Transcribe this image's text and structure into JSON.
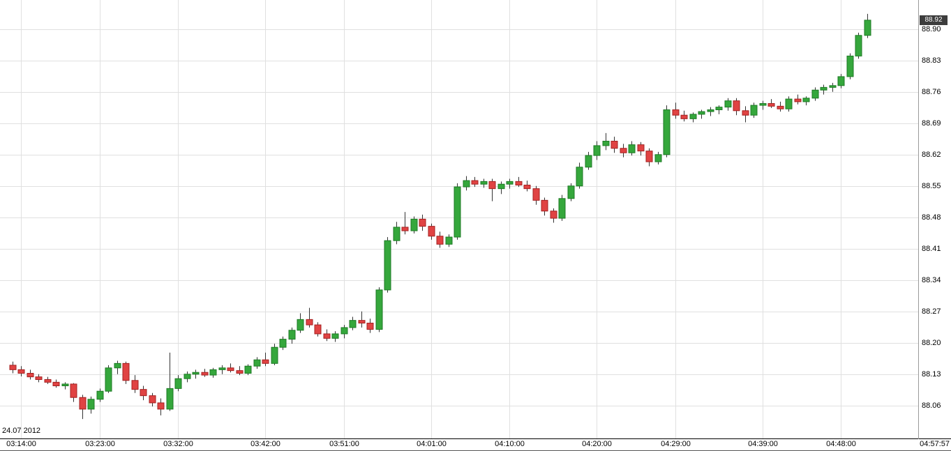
{
  "y_axis": {
    "ticks": [
      "88.90",
      "88.83",
      "88.76",
      "88.69",
      "88.62",
      "88.55",
      "88.48",
      "88.41",
      "88.34",
      "88.27",
      "88.20",
      "88.13",
      "88.06"
    ],
    "current_price": "88.92"
  },
  "x_axis": {
    "ticks": [
      "03:14:00",
      "03:23:00",
      "03:32:00",
      "03:42:00",
      "03:51:00",
      "04:01:00",
      "04:10:00",
      "04:20:00",
      "04:29:00",
      "04:39:00",
      "04:48:00"
    ],
    "current_time": "04:57:57",
    "date_label": "24.07 2012"
  },
  "chart_data": {
    "type": "candlestick",
    "title": "",
    "date": "24.07 2012",
    "current_price": 88.92,
    "ylim": [
      87.985,
      88.965
    ],
    "grid": true,
    "colors": {
      "up_fill": "#35a73c",
      "up_stroke": "#1d7a24",
      "down_fill": "#e04343",
      "down_stroke": "#a32020",
      "wick": "#333333",
      "grid": "#e0e0e0",
      "axis_line": "#000000",
      "badge_bg": "#3d3d3d"
    },
    "candles": [
      {
        "t": "03:13",
        "o": 88.15,
        "h": 88.158,
        "l": 88.132,
        "c": 88.14
      },
      {
        "t": "03:14",
        "o": 88.14,
        "h": 88.148,
        "l": 88.125,
        "c": 88.132
      },
      {
        "t": "03:15",
        "o": 88.132,
        "h": 88.14,
        "l": 88.118,
        "c": 88.124
      },
      {
        "t": "03:16",
        "o": 88.124,
        "h": 88.13,
        "l": 88.112,
        "c": 88.118
      },
      {
        "t": "03:17",
        "o": 88.118,
        "h": 88.124,
        "l": 88.108,
        "c": 88.112
      },
      {
        "t": "03:18",
        "o": 88.112,
        "h": 88.118,
        "l": 88.1,
        "c": 88.104
      },
      {
        "t": "03:19",
        "o": 88.104,
        "h": 88.112,
        "l": 88.096,
        "c": 88.108
      },
      {
        "t": "03:20",
        "o": 88.108,
        "h": 88.11,
        "l": 88.068,
        "c": 88.078
      },
      {
        "t": "03:21",
        "o": 88.078,
        "h": 88.084,
        "l": 88.03,
        "c": 88.052
      },
      {
        "t": "03:22",
        "o": 88.052,
        "h": 88.08,
        "l": 88.042,
        "c": 88.074
      },
      {
        "t": "03:23",
        "o": 88.074,
        "h": 88.098,
        "l": 88.068,
        "c": 88.092
      },
      {
        "t": "03:24",
        "o": 88.092,
        "h": 88.15,
        "l": 88.088,
        "c": 88.144
      },
      {
        "t": "03:25",
        "o": 88.144,
        "h": 88.16,
        "l": 88.13,
        "c": 88.154
      },
      {
        "t": "03:26",
        "o": 88.154,
        "h": 88.158,
        "l": 88.108,
        "c": 88.116
      },
      {
        "t": "03:27",
        "o": 88.116,
        "h": 88.128,
        "l": 88.088,
        "c": 88.096
      },
      {
        "t": "03:28",
        "o": 88.096,
        "h": 88.104,
        "l": 88.072,
        "c": 88.082
      },
      {
        "t": "03:29",
        "o": 88.082,
        "h": 88.088,
        "l": 88.058,
        "c": 88.066
      },
      {
        "t": "03:30",
        "o": 88.066,
        "h": 88.076,
        "l": 88.038,
        "c": 88.052
      },
      {
        "t": "03:31",
        "o": 88.052,
        "h": 88.178,
        "l": 88.048,
        "c": 88.098
      },
      {
        "t": "03:32",
        "o": 88.098,
        "h": 88.128,
        "l": 88.092,
        "c": 88.12
      },
      {
        "t": "03:33",
        "o": 88.12,
        "h": 88.136,
        "l": 88.112,
        "c": 88.13
      },
      {
        "t": "03:34",
        "o": 88.13,
        "h": 88.14,
        "l": 88.12,
        "c": 88.134
      },
      {
        "t": "03:35",
        "o": 88.134,
        "h": 88.142,
        "l": 88.124,
        "c": 88.128
      },
      {
        "t": "03:36",
        "o": 88.128,
        "h": 88.144,
        "l": 88.122,
        "c": 88.14
      },
      {
        "t": "03:37",
        "o": 88.14,
        "h": 88.15,
        "l": 88.13,
        "c": 88.144
      },
      {
        "t": "03:38",
        "o": 88.144,
        "h": 88.154,
        "l": 88.134,
        "c": 88.138
      },
      {
        "t": "03:39",
        "o": 88.138,
        "h": 88.148,
        "l": 88.128,
        "c": 88.132
      },
      {
        "t": "03:40",
        "o": 88.132,
        "h": 88.152,
        "l": 88.128,
        "c": 88.148
      },
      {
        "t": "03:41",
        "o": 88.148,
        "h": 88.168,
        "l": 88.142,
        "c": 88.162
      },
      {
        "t": "03:42",
        "o": 88.162,
        "h": 88.178,
        "l": 88.148,
        "c": 88.154
      },
      {
        "t": "03:43",
        "o": 88.154,
        "h": 88.198,
        "l": 88.15,
        "c": 88.19
      },
      {
        "t": "03:44",
        "o": 88.19,
        "h": 88.214,
        "l": 88.184,
        "c": 88.208
      },
      {
        "t": "03:45",
        "o": 88.208,
        "h": 88.234,
        "l": 88.198,
        "c": 88.228
      },
      {
        "t": "03:46",
        "o": 88.228,
        "h": 88.266,
        "l": 88.222,
        "c": 88.252
      },
      {
        "t": "03:47",
        "o": 88.252,
        "h": 88.278,
        "l": 88.234,
        "c": 88.24
      },
      {
        "t": "03:48",
        "o": 88.24,
        "h": 88.246,
        "l": 88.214,
        "c": 88.22
      },
      {
        "t": "03:49",
        "o": 88.22,
        "h": 88.23,
        "l": 88.204,
        "c": 88.21
      },
      {
        "t": "03:50",
        "o": 88.21,
        "h": 88.226,
        "l": 88.202,
        "c": 88.22
      },
      {
        "t": "03:51",
        "o": 88.22,
        "h": 88.24,
        "l": 88.21,
        "c": 88.234
      },
      {
        "t": "03:52",
        "o": 88.234,
        "h": 88.258,
        "l": 88.228,
        "c": 88.25
      },
      {
        "t": "03:53",
        "o": 88.25,
        "h": 88.27,
        "l": 88.234,
        "c": 88.244
      },
      {
        "t": "03:54",
        "o": 88.244,
        "h": 88.254,
        "l": 88.222,
        "c": 88.23
      },
      {
        "t": "03:55",
        "o": 88.23,
        "h": 88.324,
        "l": 88.224,
        "c": 88.318
      },
      {
        "t": "03:56",
        "o": 88.318,
        "h": 88.436,
        "l": 88.312,
        "c": 88.428
      },
      {
        "t": "03:57",
        "o": 88.428,
        "h": 88.47,
        "l": 88.42,
        "c": 88.458
      },
      {
        "t": "03:58",
        "o": 88.458,
        "h": 88.492,
        "l": 88.442,
        "c": 88.45
      },
      {
        "t": "03:59",
        "o": 88.45,
        "h": 88.482,
        "l": 88.444,
        "c": 88.476
      },
      {
        "t": "04:00",
        "o": 88.476,
        "h": 88.486,
        "l": 88.45,
        "c": 88.46
      },
      {
        "t": "04:01",
        "o": 88.46,
        "h": 88.466,
        "l": 88.43,
        "c": 88.438
      },
      {
        "t": "04:02",
        "o": 88.438,
        "h": 88.448,
        "l": 88.412,
        "c": 88.42
      },
      {
        "t": "04:03",
        "o": 88.42,
        "h": 88.442,
        "l": 88.414,
        "c": 88.436
      },
      {
        "t": "04:04",
        "o": 88.436,
        "h": 88.556,
        "l": 88.43,
        "c": 88.548
      },
      {
        "t": "04:05",
        "o": 88.548,
        "h": 88.572,
        "l": 88.54,
        "c": 88.562
      },
      {
        "t": "04:06",
        "o": 88.562,
        "h": 88.57,
        "l": 88.548,
        "c": 88.554
      },
      {
        "t": "04:07",
        "o": 88.554,
        "h": 88.566,
        "l": 88.546,
        "c": 88.56
      },
      {
        "t": "04:08",
        "o": 88.56,
        "h": 88.566,
        "l": 88.516,
        "c": 88.544
      },
      {
        "t": "04:09",
        "o": 88.544,
        "h": 88.56,
        "l": 88.532,
        "c": 88.554
      },
      {
        "t": "04:10",
        "o": 88.554,
        "h": 88.566,
        "l": 88.544,
        "c": 88.56
      },
      {
        "t": "04:11",
        "o": 88.56,
        "h": 88.57,
        "l": 88.548,
        "c": 88.552
      },
      {
        "t": "04:12",
        "o": 88.552,
        "h": 88.562,
        "l": 88.538,
        "c": 88.544
      },
      {
        "t": "04:13",
        "o": 88.544,
        "h": 88.55,
        "l": 88.508,
        "c": 88.518
      },
      {
        "t": "04:14",
        "o": 88.518,
        "h": 88.524,
        "l": 88.484,
        "c": 88.494
      },
      {
        "t": "04:15",
        "o": 88.494,
        "h": 88.5,
        "l": 88.468,
        "c": 88.478
      },
      {
        "t": "04:16",
        "o": 88.478,
        "h": 88.53,
        "l": 88.472,
        "c": 88.522
      },
      {
        "t": "04:17",
        "o": 88.522,
        "h": 88.556,
        "l": 88.516,
        "c": 88.55
      },
      {
        "t": "04:18",
        "o": 88.55,
        "h": 88.602,
        "l": 88.544,
        "c": 88.592
      },
      {
        "t": "04:19",
        "o": 88.592,
        "h": 88.626,
        "l": 88.586,
        "c": 88.618
      },
      {
        "t": "04:20",
        "o": 88.618,
        "h": 88.65,
        "l": 88.608,
        "c": 88.64
      },
      {
        "t": "04:21",
        "o": 88.64,
        "h": 88.668,
        "l": 88.63,
        "c": 88.65
      },
      {
        "t": "04:22",
        "o": 88.65,
        "h": 88.66,
        "l": 88.624,
        "c": 88.634
      },
      {
        "t": "04:23",
        "o": 88.634,
        "h": 88.644,
        "l": 88.614,
        "c": 88.624
      },
      {
        "t": "04:24",
        "o": 88.624,
        "h": 88.65,
        "l": 88.618,
        "c": 88.642
      },
      {
        "t": "04:25",
        "o": 88.642,
        "h": 88.648,
        "l": 88.618,
        "c": 88.628
      },
      {
        "t": "04:26",
        "o": 88.628,
        "h": 88.634,
        "l": 88.594,
        "c": 88.604
      },
      {
        "t": "04:27",
        "o": 88.604,
        "h": 88.626,
        "l": 88.598,
        "c": 88.62
      },
      {
        "t": "04:28",
        "o": 88.62,
        "h": 88.73,
        "l": 88.614,
        "c": 88.72
      },
      {
        "t": "04:29",
        "o": 88.72,
        "h": 88.736,
        "l": 88.7,
        "c": 88.708
      },
      {
        "t": "04:30",
        "o": 88.708,
        "h": 88.718,
        "l": 88.694,
        "c": 88.7
      },
      {
        "t": "04:31",
        "o": 88.7,
        "h": 88.714,
        "l": 88.692,
        "c": 88.71
      },
      {
        "t": "04:32",
        "o": 88.71,
        "h": 88.72,
        "l": 88.7,
        "c": 88.716
      },
      {
        "t": "04:33",
        "o": 88.716,
        "h": 88.726,
        "l": 88.706,
        "c": 88.72
      },
      {
        "t": "04:34",
        "o": 88.72,
        "h": 88.73,
        "l": 88.71,
        "c": 88.726
      },
      {
        "t": "04:35",
        "o": 88.726,
        "h": 88.746,
        "l": 88.718,
        "c": 88.74
      },
      {
        "t": "04:36",
        "o": 88.74,
        "h": 88.746,
        "l": 88.708,
        "c": 88.718
      },
      {
        "t": "04:37",
        "o": 88.718,
        "h": 88.728,
        "l": 88.692,
        "c": 88.708
      },
      {
        "t": "04:38",
        "o": 88.708,
        "h": 88.736,
        "l": 88.702,
        "c": 88.73
      },
      {
        "t": "04:39",
        "o": 88.73,
        "h": 88.74,
        "l": 88.72,
        "c": 88.734
      },
      {
        "t": "04:40",
        "o": 88.734,
        "h": 88.744,
        "l": 88.724,
        "c": 88.728
      },
      {
        "t": "04:41",
        "o": 88.728,
        "h": 88.738,
        "l": 88.716,
        "c": 88.722
      },
      {
        "t": "04:42",
        "o": 88.722,
        "h": 88.75,
        "l": 88.716,
        "c": 88.744
      },
      {
        "t": "04:43",
        "o": 88.744,
        "h": 88.754,
        "l": 88.732,
        "c": 88.738
      },
      {
        "t": "04:44",
        "o": 88.738,
        "h": 88.75,
        "l": 88.73,
        "c": 88.746
      },
      {
        "t": "04:45",
        "o": 88.746,
        "h": 88.77,
        "l": 88.74,
        "c": 88.764
      },
      {
        "t": "04:46",
        "o": 88.764,
        "h": 88.776,
        "l": 88.754,
        "c": 88.77
      },
      {
        "t": "04:47",
        "o": 88.77,
        "h": 88.78,
        "l": 88.76,
        "c": 88.774
      },
      {
        "t": "04:48",
        "o": 88.774,
        "h": 88.8,
        "l": 88.768,
        "c": 88.794
      },
      {
        "t": "04:49",
        "o": 88.794,
        "h": 88.846,
        "l": 88.788,
        "c": 88.84
      },
      {
        "t": "04:50",
        "o": 88.84,
        "h": 88.892,
        "l": 88.834,
        "c": 88.886
      },
      {
        "t": "04:51",
        "o": 88.886,
        "h": 88.934,
        "l": 88.88,
        "c": 88.92
      }
    ]
  }
}
